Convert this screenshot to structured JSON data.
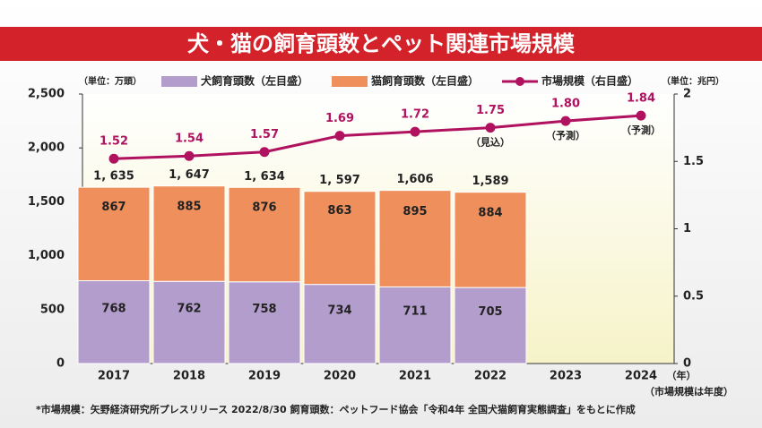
{
  "chart_data": {
    "type": "bar_line",
    "title": "犬・猫の飼育頭数とペット関連市場規模",
    "y_unit": "（単位：万頭）",
    "y2_unit": "（単位：兆円）",
    "x_label": "（年）",
    "x_note": "（市場規模は年度）",
    "categories": [
      "2017",
      "2018",
      "2019",
      "2020",
      "2021",
      "2022",
      "2023",
      "2024"
    ],
    "series": [
      {
        "name": "犬飼育頭数（左目盛）",
        "color": "#b39dcc",
        "type": "bar",
        "values": [
          768,
          762,
          758,
          734,
          711,
          705,
          null,
          null
        ]
      },
      {
        "name": "猫飼育頭数（左目盛）",
        "color": "#ee8f5c",
        "type": "bar",
        "values": [
          867,
          885,
          876,
          863,
          895,
          884,
          null,
          null
        ]
      },
      {
        "name": "市場規模（右目盛）",
        "color": "#b0125f",
        "type": "line",
        "axis": "y2",
        "values": [
          1.52,
          1.54,
          1.57,
          1.69,
          1.72,
          1.75,
          1.8,
          1.84
        ],
        "value_labels": [
          "1.52",
          "1.54",
          "1.57",
          "1.69",
          "1.72",
          "1.75",
          "1.80",
          "1.84"
        ],
        "point_notes": [
          null,
          null,
          null,
          null,
          null,
          "（見込）",
          "（予測）",
          "（予測）"
        ]
      }
    ],
    "totals": {
      "values": [
        1635,
        1647,
        1634,
        1597,
        1606,
        1589,
        null,
        null
      ],
      "value_labels": [
        "1, 635",
        "1, 647",
        "1, 634",
        "1, 597",
        "1,606",
        "1,589",
        null,
        null
      ]
    },
    "ylim": [
      0,
      2500
    ],
    "yticks": [
      0,
      500,
      {
        "value": 1000,
        "label": "1,000"
      },
      {
        "value": 1500,
        "label": "1,500"
      },
      {
        "value": 2000,
        "label": "2,000"
      },
      {
        "value": 2500,
        "label": "2,500"
      }
    ],
    "y2lim": [
      0,
      2
    ],
    "y2ticks": [
      0,
      0.5,
      1,
      1.5,
      2
    ],
    "footnote": "*市場規模：矢野経済研究所プレスリリース 2022/8/30 飼育頭数：ペットフード協会「令和4年 全国犬猫飼育実態調査」をもとに作成"
  }
}
